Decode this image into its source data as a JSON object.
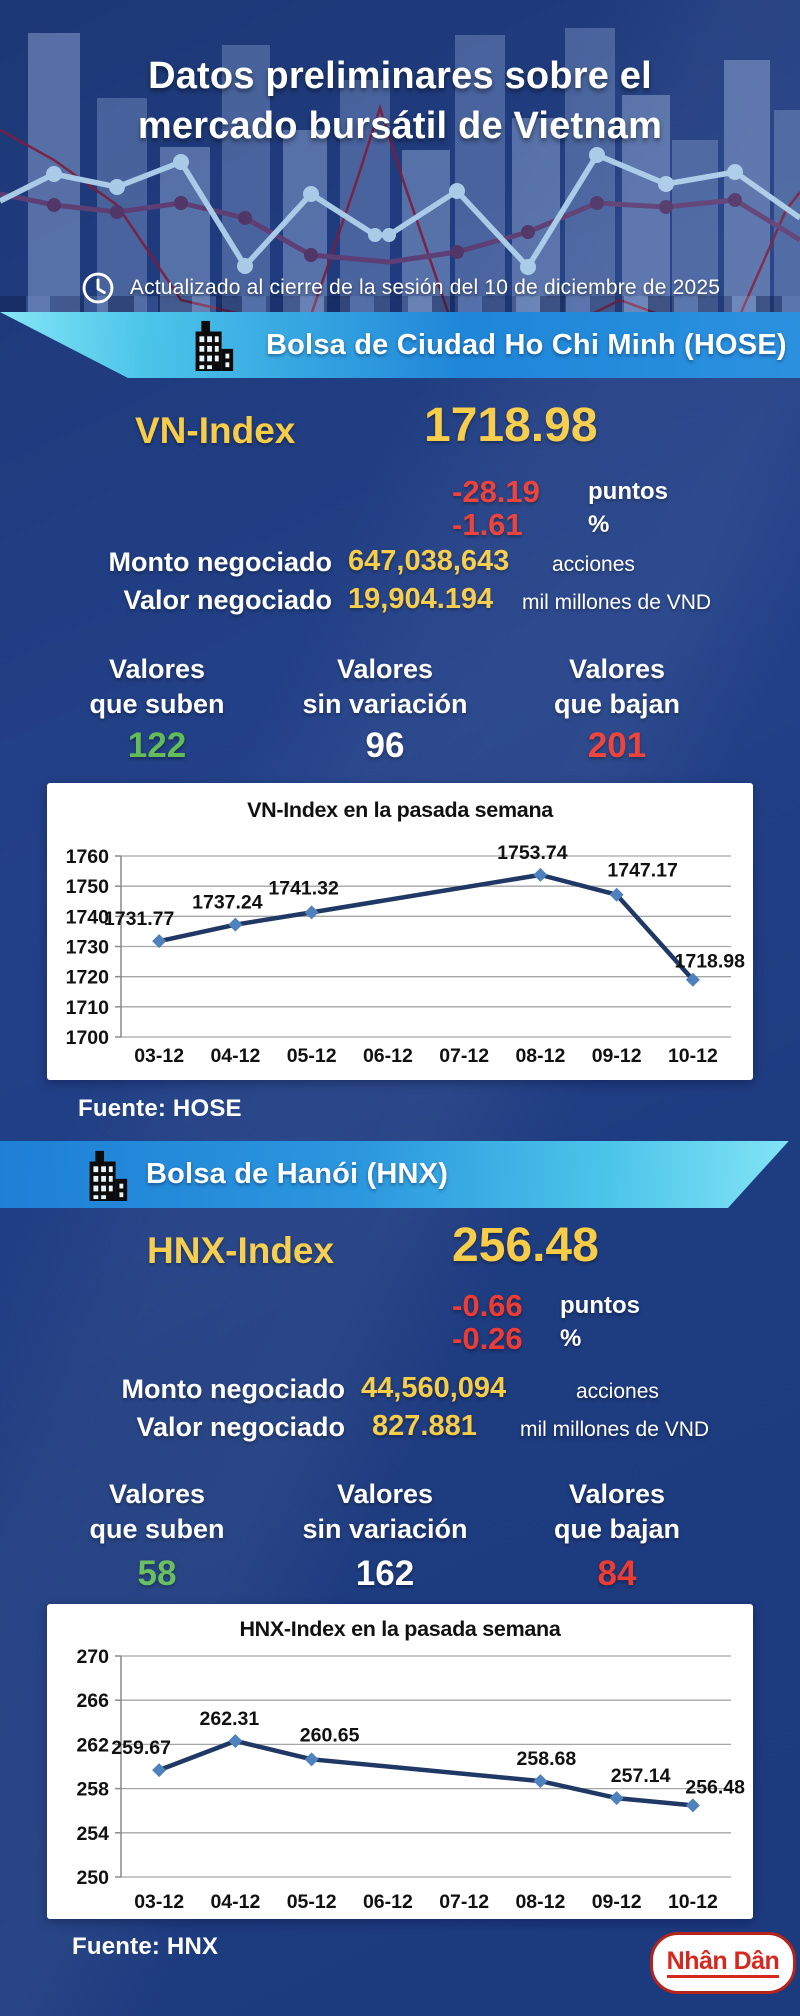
{
  "header": {
    "title_line1": "Datos preliminares sobre el",
    "title_line2": "mercado bursátil de Vietnam",
    "updated_text": "Actualizado al cierre de la sesión del 10 de diciembre de 2025"
  },
  "colors": {
    "background_navy": "#1e3c80",
    "accent_yellow": "#f7cd48",
    "negative_red": "#ee3b33",
    "positive_green": "#62bd59",
    "banner_cyan": "#86e6f6",
    "banner_blue": "#1f86d8",
    "chart_line": "#1f3864",
    "chart_marker": "#4f81bd"
  },
  "hose": {
    "banner_label": "Bolsa de Ciudad Ho Chi Minh (HOSE)",
    "index_label": "VN-Index",
    "index_value": "1718.98",
    "change_points": {
      "value": "-28.19",
      "unit": "puntos"
    },
    "change_percent": {
      "value": "-1.61",
      "unit": "%"
    },
    "volume": {
      "label": "Monto negociado",
      "value": "647,038,643",
      "unit": "acciones"
    },
    "turnover": {
      "label": "Valor negociado",
      "value": "19,904.194",
      "unit": "mil millones de VND"
    },
    "breadth": {
      "advancers": {
        "line1": "Valores",
        "line2": "que suben",
        "value": "122"
      },
      "unchanged": {
        "line1": "Valores",
        "line2": "sin variación",
        "value": "96"
      },
      "decliners": {
        "line1": "Valores",
        "line2": "que bajan",
        "value": "201"
      }
    },
    "source": "Fuente: HOSE"
  },
  "hnx": {
    "banner_label": "Bolsa de Hanói (HNX)",
    "index_label": "HNX-Index",
    "index_value": "256.48",
    "change_points": {
      "value": "-0.66",
      "unit": "puntos"
    },
    "change_percent": {
      "value": "-0.26",
      "unit": "%"
    },
    "volume": {
      "label": "Monto negociado",
      "value": "44,560,094",
      "unit": "acciones"
    },
    "turnover": {
      "label": "Valor negociado",
      "value": "827.881",
      "unit": "mil millones de VND"
    },
    "breadth": {
      "advancers": {
        "line1": "Valores",
        "line2": "que suben",
        "value": "58"
      },
      "unchanged": {
        "line1": "Valores",
        "line2": "sin variación",
        "value": "162"
      },
      "decliners": {
        "line1": "Valores",
        "line2": "que bajan",
        "value": "84"
      }
    },
    "source": "Fuente: HNX"
  },
  "footer": {
    "logo_text": "Nhân Dân"
  },
  "chart_data": [
    {
      "type": "line",
      "title": "VN-Index en la pasada semana",
      "categories": [
        "03-12",
        "04-12",
        "05-12",
        "06-12",
        "07-12",
        "08-12",
        "09-12",
        "10-12"
      ],
      "values": [
        1731.77,
        1737.24,
        1741.32,
        null,
        null,
        1753.74,
        1747.17,
        1718.98
      ],
      "ylim": [
        1700,
        1760
      ],
      "yticks": [
        1700,
        1710,
        1720,
        1730,
        1740,
        1750,
        1760
      ],
      "grid": true,
      "legend": false,
      "line_color": "#1f3864",
      "marker_color": "#4f81bd",
      "label_offsets": [
        [
          -20,
          -16
        ],
        [
          -8,
          -16
        ],
        [
          -8,
          -18
        ],
        null,
        null,
        [
          -8,
          -16
        ],
        [
          26,
          -18
        ],
        [
          999,
          -12
        ]
      ]
    },
    {
      "type": "line",
      "title": "HNX-Index en la pasada semana",
      "categories": [
        "03-12",
        "04-12",
        "05-12",
        "06-12",
        "07-12",
        "08-12",
        "09-12",
        "10-12"
      ],
      "values": [
        259.67,
        262.31,
        260.65,
        null,
        null,
        258.68,
        257.14,
        256.48
      ],
      "ylim": [
        250,
        270
      ],
      "yticks": [
        250,
        254,
        258,
        262,
        266,
        270
      ],
      "grid": true,
      "legend": false,
      "line_color": "#1f3864",
      "marker_color": "#4f81bd",
      "label_offsets": [
        [
          -18,
          -16
        ],
        [
          -6,
          -16
        ],
        [
          18,
          -18
        ],
        null,
        null,
        [
          6,
          -16
        ],
        [
          24,
          -16
        ],
        [
          999,
          -12
        ]
      ]
    }
  ]
}
